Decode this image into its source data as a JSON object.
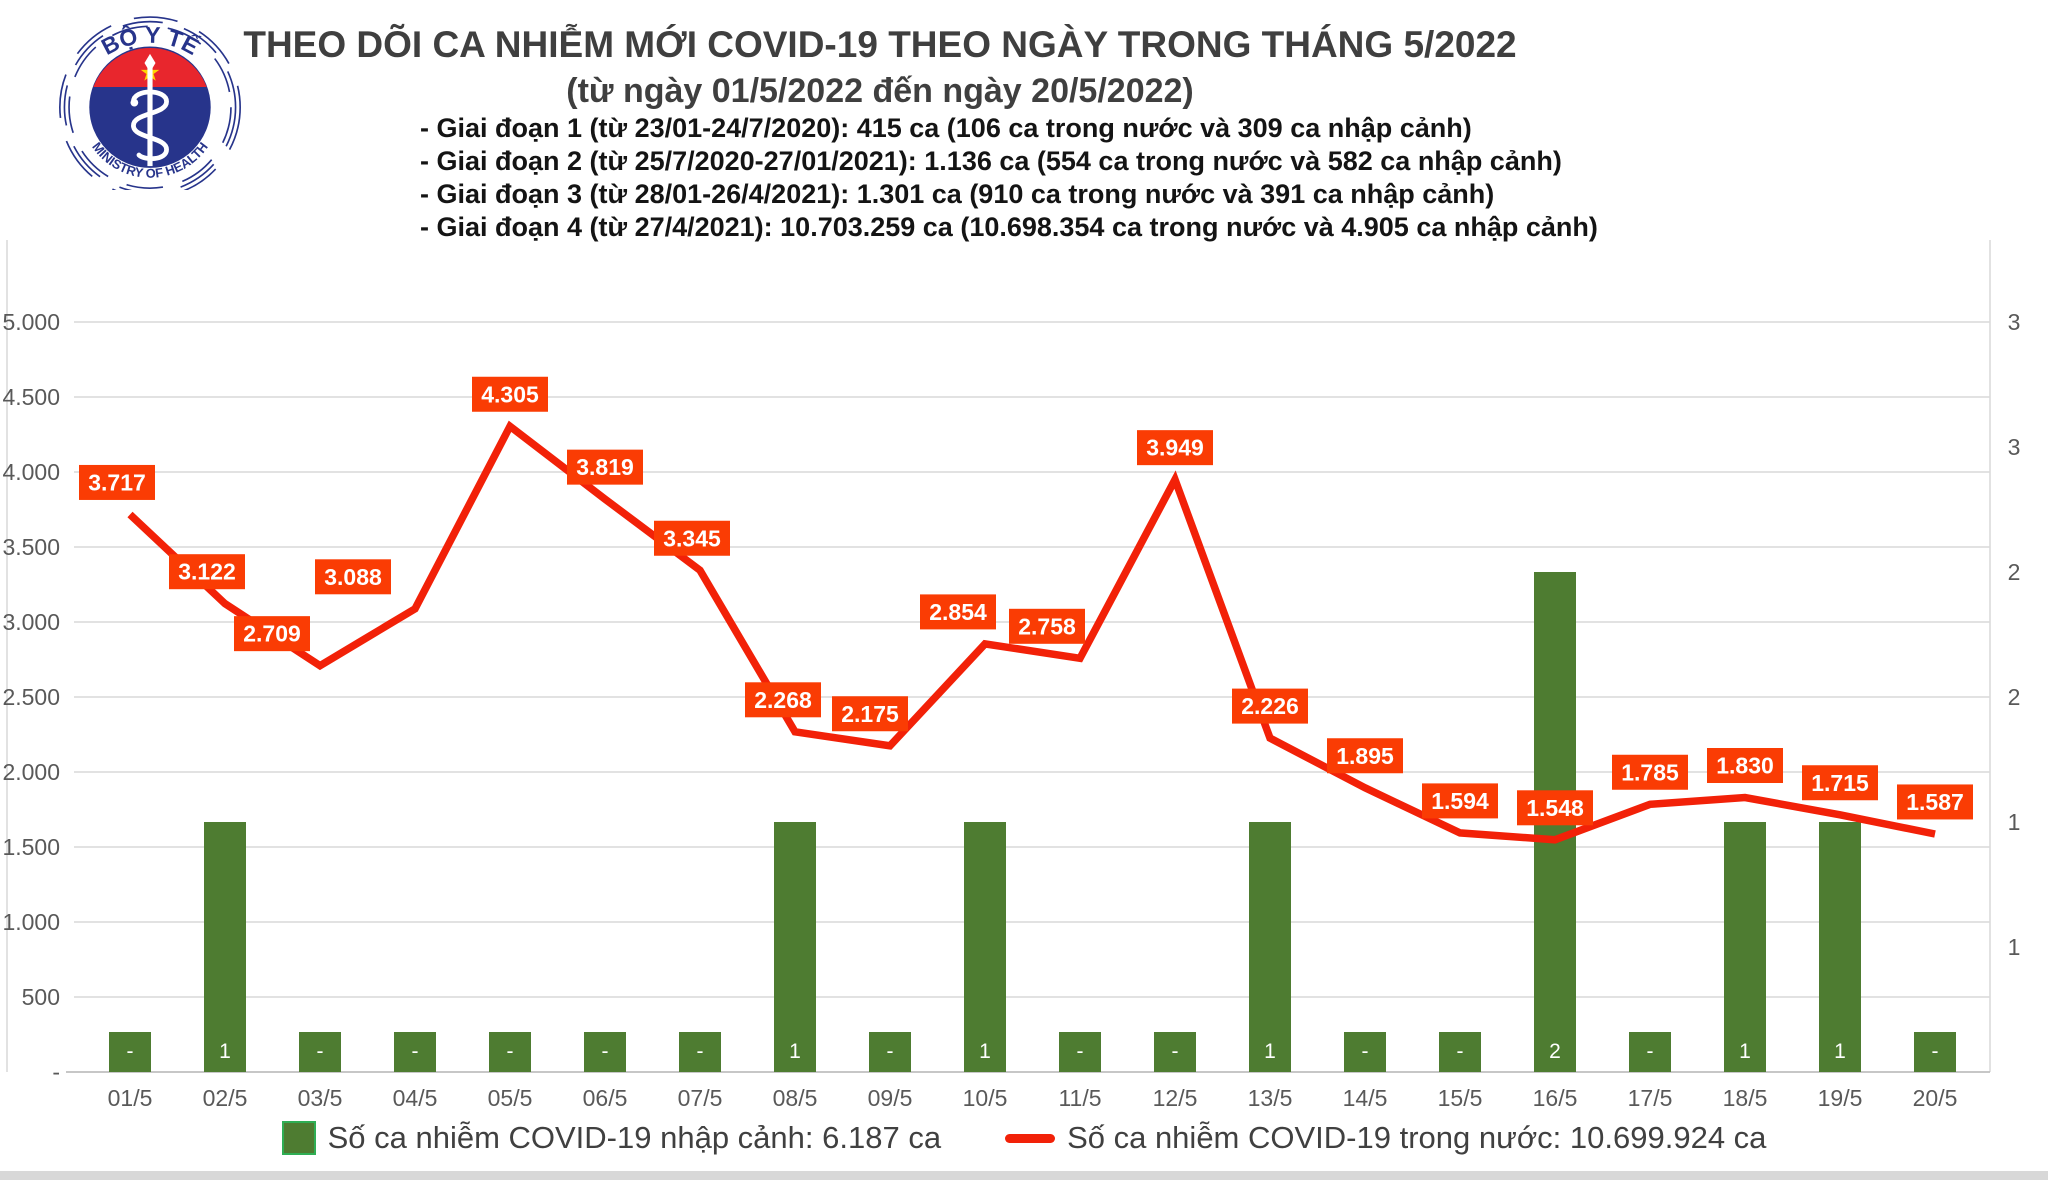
{
  "logo": {
    "top_text": "BỘ Y TẾ",
    "bottom_text": "MINISTRY OF HEALTH"
  },
  "title": "THEO DÕI CA NHIỄM MỚI COVID-19 THEO NGÀY TRONG THÁNG 5/2022",
  "subtitle": "(từ ngày 01/5/2022 đến ngày 20/5/2022)",
  "phases": [
    "- Giai đoạn 1 (từ 23/01-24/7/2020): 415 ca (106 ca trong nước và 309 ca nhập cảnh)",
    "- Giai đoạn 2 (từ 25/7/2020-27/01/2021): 1.136 ca (554 ca trong nước và 582 ca nhập cảnh)",
    "- Giai đoạn 3 (từ 28/01-26/4/2021): 1.301 ca (910 ca trong nước và 391 ca nhập cảnh)",
    "- Giai đoạn 4 (từ 27/4/2021): 10.703.259 ca (10.698.354 ca trong nước và 4.905 ca nhập cảnh)"
  ],
  "chart_data": {
    "type": "line",
    "title": "THEO DÕI CA NHIỄM MỚI COVID-19 THEO NGÀY TRONG THÁNG 5/2022",
    "categories": [
      "01/5",
      "02/5",
      "03/5",
      "04/5",
      "05/5",
      "06/5",
      "07/5",
      "08/5",
      "09/5",
      "10/5",
      "11/5",
      "12/5",
      "13/5",
      "14/5",
      "15/5",
      "16/5",
      "17/5",
      "18/5",
      "19/5",
      "20/5"
    ],
    "series": [
      {
        "name": "Số ca nhiễm COVID-19 trong nước",
        "type": "line",
        "values": [
          3717,
          3122,
          2709,
          3088,
          4305,
          3819,
          3345,
          2268,
          2175,
          2854,
          2758,
          3949,
          2226,
          1895,
          1594,
          1548,
          1785,
          1830,
          1715,
          1587
        ],
        "labels": [
          "3.717",
          "3.122",
          "2.709",
          "3.088",
          "4.305",
          "3.819",
          "3.345",
          "2.268",
          "2.175",
          "2.854",
          "2.758",
          "3.949",
          "2.226",
          "1.895",
          "1.594",
          "1.548",
          "1.785",
          "1.830",
          "1.715",
          "1.587"
        ]
      },
      {
        "name": "Số ca nhiễm COVID-19 nhập cảnh",
        "type": "bar",
        "values": [
          0,
          1,
          0,
          0,
          0,
          0,
          0,
          1,
          0,
          1,
          0,
          0,
          1,
          0,
          0,
          2,
          0,
          1,
          1,
          0
        ],
        "labels": [
          "-",
          "1",
          "-",
          "-",
          "-",
          "-",
          "-",
          "1",
          "-",
          "1",
          "-",
          "-",
          "1",
          "-",
          "-",
          "2",
          "-",
          "1",
          "1",
          "-"
        ]
      }
    ],
    "left_axis": {
      "ticks": [
        "5.000",
        "4.500",
        "4.000",
        "3.500",
        "3.000",
        "2.500",
        "2.000",
        "1.500",
        "1.000",
        "500",
        "-"
      ],
      "min": 0,
      "max": 5000
    },
    "right_axis": {
      "ticks_top_to_bottom": [
        "3",
        "3",
        "2",
        "2",
        "1",
        "1"
      ]
    },
    "grid": "horizontal",
    "legend_position": "bottom",
    "style": {
      "bar_color": "#4e7c31",
      "bar_legend_border": "#2fae54",
      "line_color": "#f22108",
      "data_label_bg": "#fa3c04",
      "data_label_text": "#ffffff",
      "grid_color": "#d9d9d9",
      "axis_color": "#bfbfbf",
      "tick_text_color": "#595959"
    }
  },
  "legend": [
    {
      "label": "Số ca nhiễm COVID-19 nhập cảnh: 6.187 ca",
      "swatch": "bar"
    },
    {
      "label": "Số ca nhiễm COVID-19 trong nước: 10.699.924 ca",
      "swatch": "line"
    }
  ]
}
